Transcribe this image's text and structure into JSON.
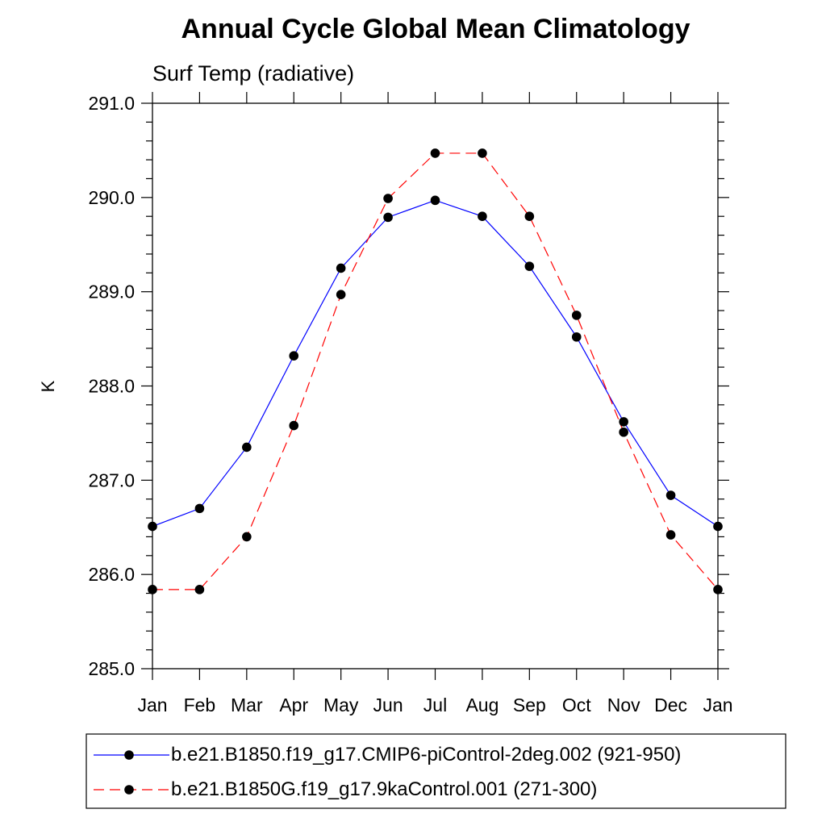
{
  "chart_data": {
    "type": "line",
    "title": "Annual Cycle Global Mean Climatology",
    "subtitle": "Surf Temp (radiative)",
    "xlabel": "",
    "ylabel": "K",
    "categories": [
      "Jan",
      "Feb",
      "Mar",
      "Apr",
      "May",
      "Jun",
      "Jul",
      "Aug",
      "Sep",
      "Oct",
      "Nov",
      "Dec",
      "Jan"
    ],
    "ylim": [
      285.0,
      291.0
    ],
    "yticks": [
      "285.0",
      "286.0",
      "287.0",
      "288.0",
      "289.0",
      "290.0",
      "291.0"
    ],
    "grid": false,
    "legend_position": "bottom",
    "series": [
      {
        "name": "b.e21.B1850.f19_g17.CMIP6-piControl-2deg.002 (921-950)",
        "color": "#0000ff",
        "line_style": "solid",
        "marker": "circle",
        "values": [
          286.51,
          286.7,
          287.35,
          288.32,
          289.25,
          289.79,
          289.97,
          289.8,
          289.27,
          288.52,
          287.62,
          286.84,
          286.51
        ]
      },
      {
        "name": "b.e21.B1850G.f19_g17.9kaControl.001 (271-300)",
        "color": "#ff0000",
        "line_style": "dashed",
        "marker": "circle",
        "values": [
          285.84,
          285.84,
          286.4,
          287.58,
          288.97,
          289.99,
          290.47,
          290.47,
          289.8,
          288.75,
          287.51,
          286.42,
          285.84
        ]
      }
    ]
  }
}
